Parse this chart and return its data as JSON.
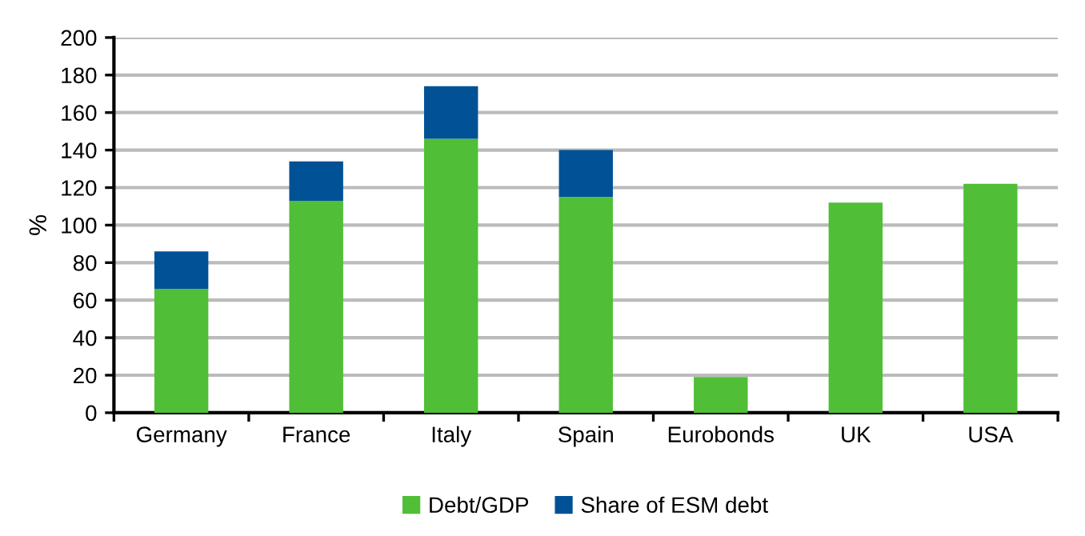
{
  "chart_data": {
    "type": "bar",
    "stacked": true,
    "ylabel": "%",
    "categories": [
      "Germany",
      "France",
      "Italy",
      "Spain",
      "Eurobonds",
      "UK",
      "USA"
    ],
    "series": [
      {
        "name": "Debt/GDP",
        "color": "#50be37",
        "values": [
          66,
          113,
          146,
          115,
          19,
          112,
          122
        ]
      },
      {
        "name": "Share of ESM debt",
        "color": "#005196",
        "values": [
          20,
          21,
          28,
          25,
          null,
          null,
          null
        ]
      }
    ],
    "ylim": [
      0,
      200
    ],
    "yticks": [
      0,
      20,
      40,
      60,
      80,
      100,
      120,
      140,
      160,
      180,
      200
    ],
    "grid": "y",
    "legend": "bottom"
  }
}
